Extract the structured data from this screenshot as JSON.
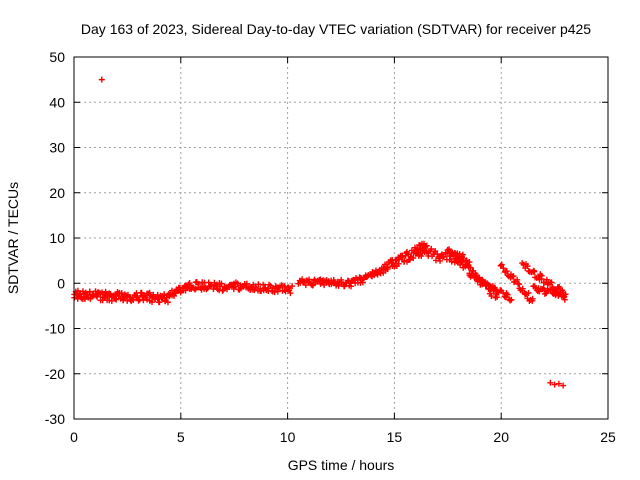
{
  "chart_data": {
    "type": "scatter",
    "title": "Day 163 of 2023, Sidereal Day-to-day VTEC variation (SDTVAR) for receiver p425",
    "xlabel": "GPS time / hours",
    "ylabel": "SDTVAR / TECUs",
    "xlim": [
      0,
      25
    ],
    "ylim": [
      -30,
      50
    ],
    "grid": true,
    "marker": "plus",
    "color": "#ff0000",
    "x_ticks": [
      0,
      5,
      10,
      15,
      20,
      25
    ],
    "y_ticks": [
      -30,
      -20,
      -10,
      0,
      10,
      20,
      30,
      40,
      50
    ],
    "series": [
      {
        "name": "SDTVAR",
        "bands": [
          {
            "x0": 0.0,
            "x1": 2.0,
            "y0": -2.5,
            "y1": -3.0,
            "spread": 2.0,
            "n": 60
          },
          {
            "x0": 2.0,
            "x1": 4.5,
            "y0": -3.0,
            "y1": -3.3,
            "spread": 2.2,
            "n": 70
          },
          {
            "x0": 4.5,
            "x1": 5.5,
            "y0": -2.5,
            "y1": -0.5,
            "spread": 1.5,
            "n": 30
          },
          {
            "x0": 5.5,
            "x1": 7.5,
            "y0": -0.5,
            "y1": -1.0,
            "spread": 1.8,
            "n": 45
          },
          {
            "x0": 7.5,
            "x1": 10.2,
            "y0": -0.6,
            "y1": -1.5,
            "spread": 1.8,
            "n": 60
          },
          {
            "x0": 10.5,
            "x1": 13.0,
            "y0": 0.2,
            "y1": 0.0,
            "spread": 1.5,
            "n": 55
          },
          {
            "x0": 13.0,
            "x1": 14.5,
            "y0": 0.0,
            "y1": 3.0,
            "spread": 1.8,
            "n": 40
          },
          {
            "x0": 14.5,
            "x1": 16.5,
            "y0": 3.0,
            "y1": 8.5,
            "spread": 2.5,
            "n": 55
          },
          {
            "x0": 16.0,
            "x1": 18.5,
            "y0": 7.0,
            "y1": 5.0,
            "spread": 2.5,
            "n": 55
          },
          {
            "x0": 17.5,
            "x1": 19.8,
            "y0": 7.5,
            "y1": -3.0,
            "spread": 1.8,
            "n": 50
          },
          {
            "x0": 18.5,
            "x1": 20.5,
            "y0": 2.0,
            "y1": -3.5,
            "spread": 1.5,
            "n": 35
          },
          {
            "x0": 20.0,
            "x1": 21.5,
            "y0": 4.0,
            "y1": -4.0,
            "spread": 1.5,
            "n": 30
          },
          {
            "x0": 21.0,
            "x1": 23.0,
            "y0": 4.0,
            "y1": -2.5,
            "spread": 1.5,
            "n": 40
          },
          {
            "x0": 21.5,
            "x1": 23.0,
            "y0": -1.0,
            "y1": -3.0,
            "spread": 1.5,
            "n": 30
          }
        ],
        "points": [
          {
            "x": 1.3,
            "y": 45.0
          },
          {
            "x": 22.3,
            "y": -22.0
          },
          {
            "x": 22.5,
            "y": -22.4
          },
          {
            "x": 22.7,
            "y": -22.2
          },
          {
            "x": 22.9,
            "y": -22.6
          }
        ]
      }
    ]
  }
}
